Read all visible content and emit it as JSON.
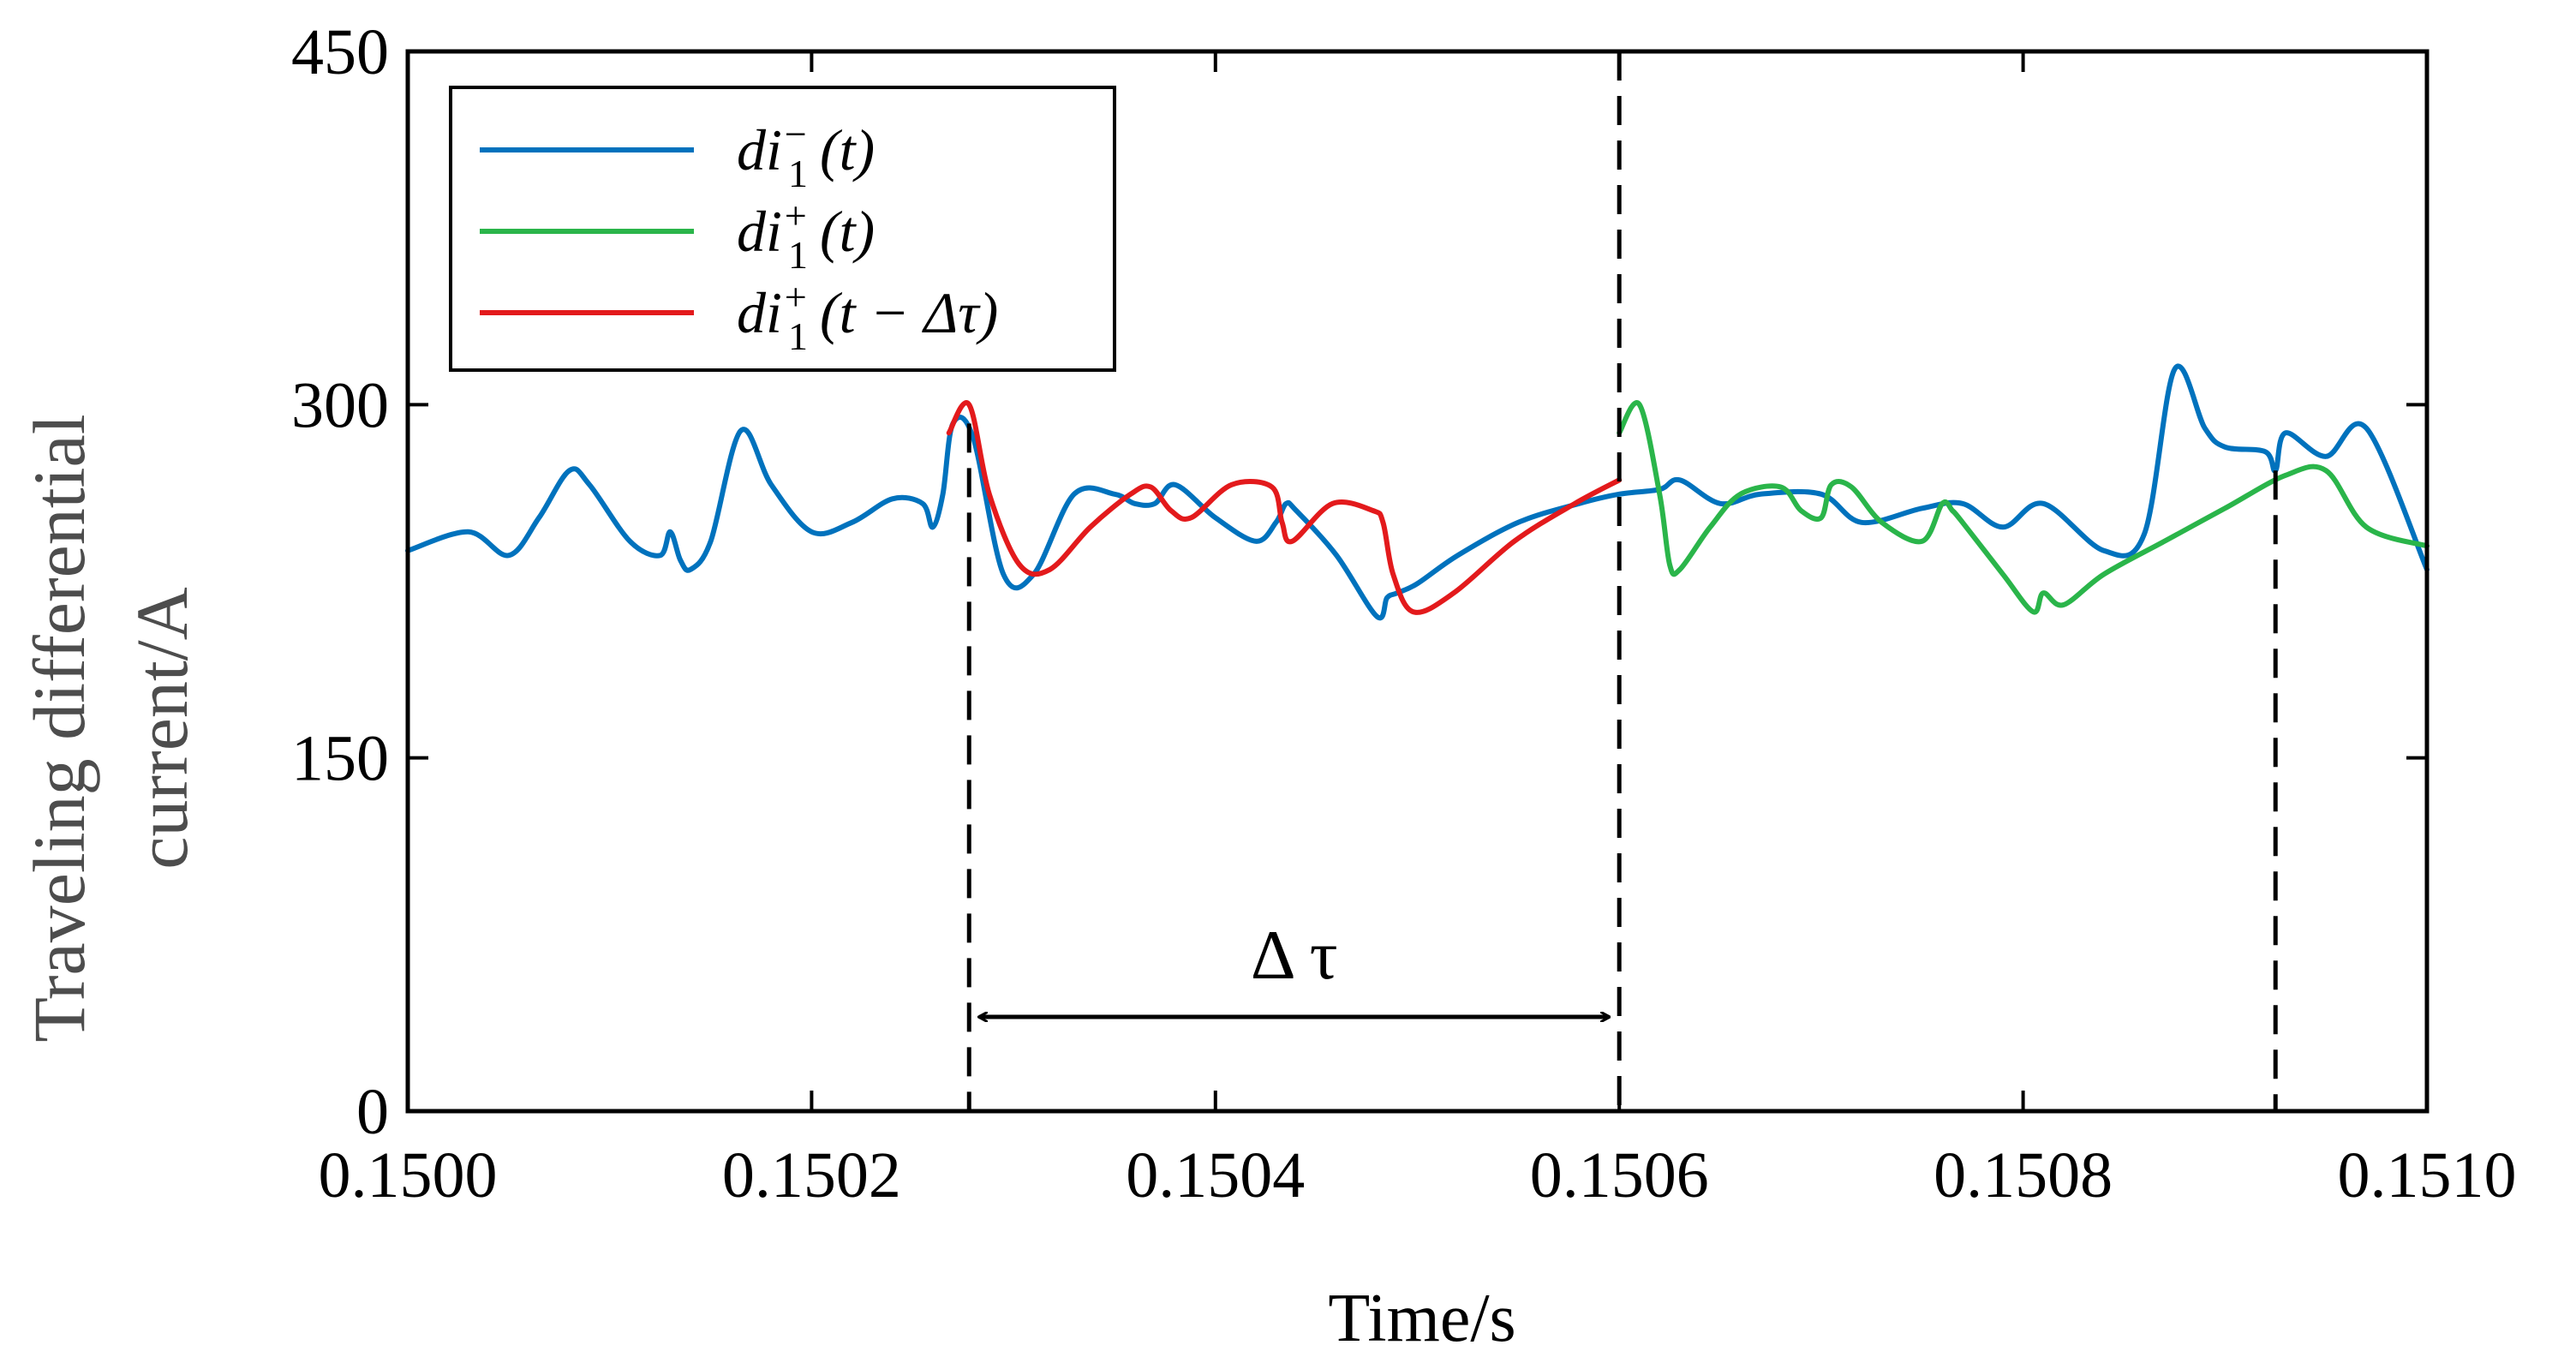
{
  "chart_data": {
    "type": "line",
    "title": "",
    "xlabel": "Time/s",
    "ylabel_lines": [
      "Traveling differential",
      "current/A"
    ],
    "xlim": [
      0.15,
      0.151
    ],
    "ylim": [
      0,
      450
    ],
    "xticks": [
      0.15,
      0.1502,
      0.1504,
      0.1506,
      0.1508,
      0.151
    ],
    "xtick_labels": [
      "0.1500",
      "0.1502",
      "0.1504",
      "0.1506",
      "0.1508",
      "0.1510"
    ],
    "yticks": [
      0,
      150,
      300,
      450
    ],
    "ytick_labels": [
      "0",
      "150",
      "300",
      "450"
    ],
    "grid": false,
    "legend": {
      "position": "top-left",
      "entries": [
        {
          "base": "di",
          "sub": "1",
          "sup": "−",
          "tail": "(t)"
        },
        {
          "base": "di",
          "sub": "1",
          "sup": "+",
          "tail": "(t)"
        },
        {
          "base": "di",
          "sub": "1",
          "sup": "+",
          "tail": "(t − Δτ)"
        }
      ]
    },
    "series": [
      {
        "name": "di1-(t)",
        "color": "#0072bd",
        "x": [
          0.15,
          0.15003,
          0.15005,
          0.150065,
          0.15008,
          0.15009,
          0.15011,
          0.150125,
          0.15013,
          0.150135,
          0.15014,
          0.15015,
          0.150165,
          0.15018,
          0.1502,
          0.15022,
          0.15024,
          0.150255,
          0.15026,
          0.150265,
          0.15027,
          0.15028,
          0.150295,
          0.15031,
          0.15033,
          0.15035,
          0.15036,
          0.15037,
          0.15038,
          0.1504,
          0.15042,
          0.15043,
          0.150435,
          0.15044,
          0.15046,
          0.15048,
          0.150485,
          0.15049,
          0.1505,
          0.15052,
          0.15055,
          0.15058,
          0.1506,
          0.15062,
          0.15063,
          0.15065,
          0.15067,
          0.1507,
          0.15072,
          0.15075,
          0.15077,
          0.15079,
          0.15081,
          0.15084,
          0.15086,
          0.150875,
          0.15089,
          0.1509,
          0.15092,
          0.150925,
          0.15093,
          0.15095,
          0.15097,
          0.151
        ],
        "y": [
          238,
          246,
          236,
          252,
          272,
          266,
          242,
          236,
          246,
          234,
          230,
          242,
          289,
          266,
          246,
          250,
          260,
          258,
          248,
          262,
          292,
          286,
          228,
          228,
          262,
          262,
          258,
          258,
          266,
          252,
          242,
          250,
          258,
          255,
          236,
          210,
          218,
          220,
          224,
          236,
          250,
          258,
          262,
          264,
          268,
          258,
          262,
          262,
          250,
          256,
          258,
          248,
          258,
          238,
          245,
          315,
          290,
          282,
          280,
          272,
          288,
          278,
          290,
          230
        ]
      },
      {
        "name": "di1+(t)",
        "color": "#2ab54a",
        "x": [
          0.1506,
          0.15061,
          0.15062,
          0.150625,
          0.15063,
          0.150645,
          0.15066,
          0.15068,
          0.15069,
          0.1507,
          0.150705,
          0.150715,
          0.15073,
          0.15075,
          0.15076,
          0.150765,
          0.15077,
          0.15079,
          0.150805,
          0.15081,
          0.15082,
          0.15084,
          0.15087,
          0.1509,
          0.15093,
          0.15095,
          0.15097,
          0.151
        ],
        "y": [
          288,
          300,
          262,
          232,
          230,
          248,
          262,
          265,
          255,
          252,
          266,
          265,
          250,
          242,
          258,
          255,
          250,
          228,
          212,
          220,
          215,
          228,
          242,
          256,
          270,
          272,
          248,
          240
        ]
      },
      {
        "name": "di1+(t-Δτ)",
        "color": "#e31a1c",
        "x": [
          0.150268,
          0.150278,
          0.150288,
          0.150303,
          0.150318,
          0.150338,
          0.150358,
          0.150368,
          0.150378,
          0.150388,
          0.150408,
          0.150428,
          0.150433,
          0.150438,
          0.150458,
          0.150478,
          0.150483,
          0.150488,
          0.150498,
          0.150518,
          0.150548,
          0.150578,
          0.1506
        ],
        "y": [
          288,
          300,
          262,
          232,
          230,
          248,
          262,
          265,
          255,
          252,
          266,
          265,
          250,
          242,
          258,
          255,
          250,
          228,
          212,
          220,
          242,
          258,
          268
        ]
      }
    ],
    "annotations": {
      "vlines_x": [
        0.150278,
        0.1506,
        0.150925
      ],
      "arrow": {
        "from_x": 0.150278,
        "to_x": 0.1506,
        "y": 40,
        "label": "Δ τ"
      }
    }
  }
}
